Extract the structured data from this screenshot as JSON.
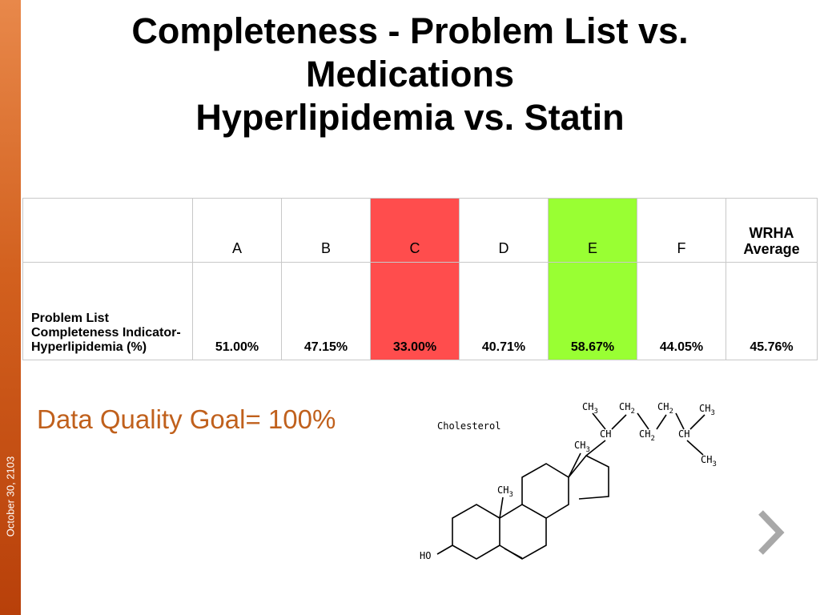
{
  "slide": {
    "title_lines": [
      "Completeness - Problem List vs.",
      "Medications",
      "Hyperlipidemia vs. Statin"
    ],
    "date": "October 30, 2103",
    "goal_text": "Data Quality Goal= 100%"
  },
  "table": {
    "headers": [
      "",
      "A",
      "B",
      "C",
      "D",
      "E",
      "F",
      "WRHA Average"
    ],
    "row_label": "Problem List Completeness Indicator-Hyperlipidemia (%)",
    "values": [
      "51.00%",
      "47.15%",
      "33.00%",
      "40.71%",
      "58.67%",
      "44.05%",
      "45.76%"
    ],
    "highlight_colors": {
      "C": "#ff4d4d",
      "E": "#99ff33"
    }
  },
  "diagram": {
    "title": "Cholesterol",
    "labels": {
      "ch3": "CH",
      "ch2": "CH",
      "ch": "CH",
      "sub3": "3",
      "sub2": "2",
      "ho": "HO"
    }
  },
  "icons": {
    "next": "chevron-right-icon"
  },
  "colors": {
    "accent": "#c0601c",
    "sidebar": "#d2601e",
    "red_cell": "#ff4d4d",
    "green_cell": "#99ff33"
  }
}
